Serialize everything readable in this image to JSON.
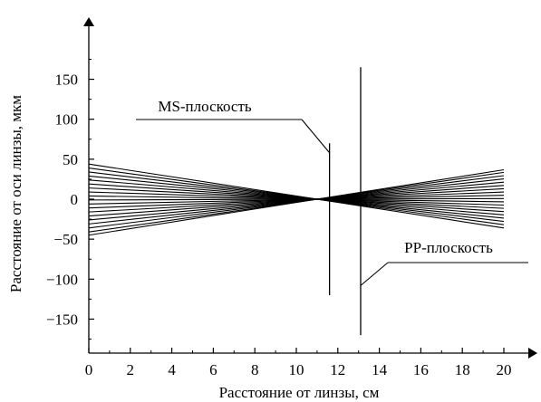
{
  "chart_data": {
    "type": "line",
    "xlabel": "Расстояние от линзы, см",
    "ylabel": "Расстояние от оси линзы, мкм",
    "xlim": [
      0,
      21.5
    ],
    "ylim": [
      -180,
      200
    ],
    "xticks": [
      0,
      2,
      4,
      6,
      8,
      10,
      12,
      14,
      16,
      18,
      20
    ],
    "yticks": [
      -150,
      -100,
      -50,
      0,
      50,
      100,
      150
    ],
    "xtick_labels": [
      "0",
      "2",
      "4",
      "6",
      "8",
      "10",
      "12",
      "14",
      "16",
      "18",
      "20"
    ],
    "ytick_labels": [
      "−150",
      "−100",
      "−50",
      "0",
      "50",
      "100",
      "150"
    ],
    "grid": false,
    "rays": {
      "x_start": 0,
      "x_end": 20,
      "focus_x": 11,
      "focus_y": 0,
      "start_y": [
        44,
        39,
        34,
        29,
        24,
        19,
        14,
        9,
        4,
        -1,
        -6,
        -11,
        -16,
        -21,
        -26,
        -31,
        -36,
        -41,
        -45
      ]
    },
    "planes": [
      {
        "label": "MS-плоскость",
        "x": 11.6,
        "y_top": 70,
        "y_bottom": -120
      },
      {
        "label": "PP-плоскость",
        "x": 13.1,
        "y_top": 165,
        "y_bottom": -170
      }
    ]
  }
}
